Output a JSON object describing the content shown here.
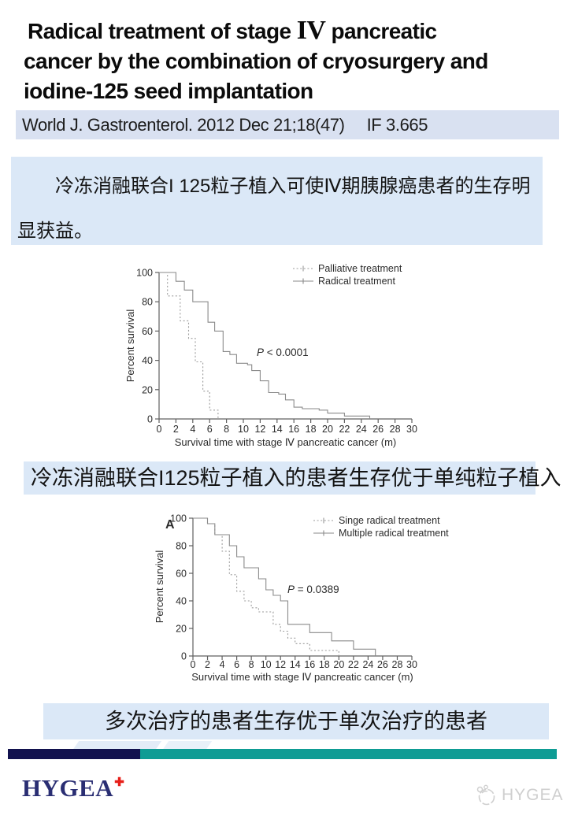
{
  "slide": {
    "title": {
      "line1_pre": "Radical treatment of stage ",
      "line1_roman": "IV",
      "line1_post": " pancreatic",
      "line2": "cancer by the combination of cryosurgery and",
      "line3": "iodine-125 seed implantation"
    },
    "journal_bar": {
      "citation": "World J. Gastroenterol. 2012 Dec 21;18(47)",
      "impact_factor": "IF 3.665"
    },
    "summary_box": {
      "text": "冷冻消融联合I 125粒子植入可使Ⅳ期胰腺癌患者的生存明显获益。"
    },
    "caption_mid": {
      "text": "冷冻消融联合I125粒子植入的患者生存优于单纯粒子植入"
    },
    "caption_bottom": {
      "text": "多次治疗的患者生存优于单次治疗的患者"
    },
    "footer": {
      "logo_text": "HYGEA",
      "logo_cross_icon": "✚",
      "watermark_text": "HYGEA"
    }
  },
  "colors": {
    "journal_bar": "#d9e1f1",
    "light_blue_box": "#dbe8f7",
    "navy": "#12124e",
    "teal": "#0e9c94",
    "logo_navy": "#2a2e73",
    "cross_red": "#e7201a",
    "axis_gray": "#606060",
    "curve_gray": "#8a8a8a"
  },
  "chart_data": [
    {
      "type": "line",
      "subtype": "kaplan_meier_step",
      "panel_label": "",
      "title": "",
      "xlabel": "Survival time with stage Ⅳ pancreatic cancer (m)",
      "ylabel": "Percent survival",
      "xlim": [
        0,
        30
      ],
      "ylim": [
        0,
        100
      ],
      "xtick_step": 2,
      "ytick_step": 20,
      "grid": false,
      "legend_position": "top-right-inside",
      "annotation": "P < 0.0001",
      "series": [
        {
          "name": "Palliative treatment",
          "line_style": "dotted",
          "color": "#9b9b9b",
          "steps": [
            [
              0,
              100
            ],
            [
              1,
              84
            ],
            [
              2.5,
              67
            ],
            [
              3.5,
              55
            ],
            [
              4.3,
              39
            ],
            [
              5.2,
              19
            ],
            [
              6,
              6
            ],
            [
              7,
              0
            ]
          ]
        },
        {
          "name": "Radical treatment",
          "line_style": "solid",
          "color": "#8a8a8a",
          "steps": [
            [
              0,
              100
            ],
            [
              2,
              94
            ],
            [
              3,
              88
            ],
            [
              4,
              80
            ],
            [
              5.8,
              66
            ],
            [
              6.6,
              60
            ],
            [
              7.6,
              46
            ],
            [
              8.4,
              44
            ],
            [
              9.2,
              38
            ],
            [
              10.5,
              37
            ],
            [
              11,
              33
            ],
            [
              12,
              26
            ],
            [
              13,
              18
            ],
            [
              14.2,
              17
            ],
            [
              15,
              13
            ],
            [
              16,
              8
            ],
            [
              17,
              7
            ],
            [
              19,
              6
            ],
            [
              20,
              4
            ],
            [
              22,
              2
            ],
            [
              25,
              2
            ],
            [
              25,
              0
            ]
          ]
        }
      ]
    },
    {
      "type": "line",
      "subtype": "kaplan_meier_step",
      "panel_label": "A",
      "title": "",
      "xlabel": "Survival time with stage Ⅳ pancreatic cancer (m)",
      "ylabel": "Percent survival",
      "xlim": [
        0,
        30
      ],
      "ylim": [
        0,
        100
      ],
      "xtick_step": 2,
      "ytick_step": 20,
      "grid": false,
      "legend_position": "top-right-inside",
      "annotation": "P = 0.0389",
      "series": [
        {
          "name": "Singe radical treatment",
          "line_style": "dotted",
          "color": "#9b9b9b",
          "steps": [
            [
              0,
              100
            ],
            [
              2,
              96
            ],
            [
              3,
              88
            ],
            [
              4,
              76
            ],
            [
              5,
              59
            ],
            [
              6,
              47
            ],
            [
              7,
              40
            ],
            [
              8,
              35
            ],
            [
              9,
              32
            ],
            [
              11,
              23
            ],
            [
              12,
              18
            ],
            [
              13,
              13
            ],
            [
              14,
              9
            ],
            [
              16,
              4
            ],
            [
              20,
              4
            ],
            [
              20,
              0
            ]
          ]
        },
        {
          "name": "Multiple radical treatment",
          "line_style": "solid",
          "color": "#8a8a8a",
          "steps": [
            [
              0,
              100
            ],
            [
              2,
              96
            ],
            [
              3,
              88
            ],
            [
              5,
              80
            ],
            [
              6,
              72
            ],
            [
              7,
              64
            ],
            [
              9,
              56
            ],
            [
              10,
              48
            ],
            [
              11,
              44
            ],
            [
              12,
              40
            ],
            [
              13,
              23
            ],
            [
              16,
              17
            ],
            [
              19,
              11
            ],
            [
              22,
              5
            ],
            [
              25,
              5
            ],
            [
              25,
              0
            ]
          ]
        }
      ]
    }
  ]
}
